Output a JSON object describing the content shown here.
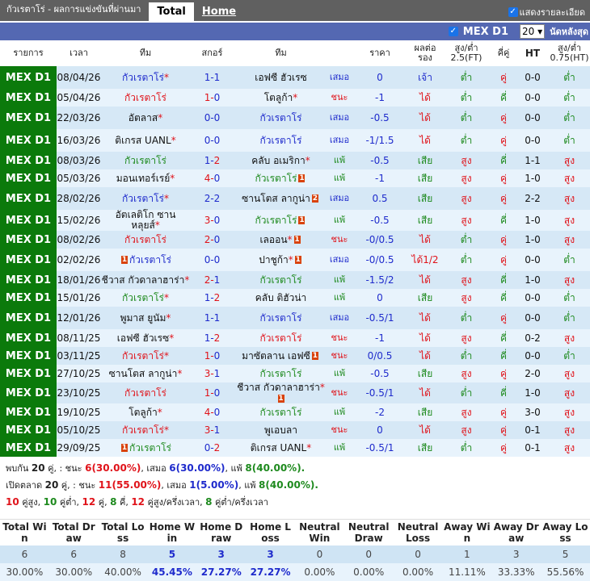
{
  "header": {
    "title": "กัวเรตาโร่ - ผลการแข่งขันที่ผ่านมา",
    "tabs": [
      "Total",
      "Home"
    ],
    "show_details": "แสดงรายละเอียด"
  },
  "filter": {
    "league": "MEX D1",
    "count": "20",
    "last_label": "นัดหลังสุด"
  },
  "columns": [
    "รายการ",
    "เวลา",
    "ทีม",
    "สกอร์",
    "ทีม",
    "",
    "ราคา",
    "ผลต่อรอง",
    "สูง/ต่ำ 2.5(FT)",
    "คี่คู่",
    "HT",
    "สูง/ต่ำ 0.75(HT)"
  ],
  "rows": [
    {
      "league": "MEX D1",
      "date": "08/04/26",
      "home": "กัวเรตาโร่",
      "home_star": true,
      "home_card": "",
      "away": "เอฟซี ฮัวเรซ",
      "away_star": false,
      "away_card": "",
      "score": "1-1",
      "focus": "home",
      "result": "เสมอ",
      "handicap": "0",
      "hres": "เจ้า",
      "ou": "ต่ำ",
      "oe": "คู่",
      "ht": "0-0",
      "htou": "ต่ำ"
    },
    {
      "league": "MEX D1",
      "date": "05/04/26",
      "home": "กัวเรตาโร่",
      "home_star": false,
      "home_card": "",
      "away": "โตลูก้า",
      "away_star": true,
      "away_card": "",
      "score": "1-0",
      "focus": "home",
      "result": "ชนะ",
      "handicap": "-1",
      "hres": "ได้",
      "ou": "ต่ำ",
      "oe": "คี่",
      "ht": "0-0",
      "htou": "ต่ำ"
    },
    {
      "league": "MEX D1",
      "date": "22/03/26",
      "home": "อัตลาส",
      "home_star": true,
      "home_card": "",
      "away": "กัวเรตาโร่",
      "away_star": false,
      "away_card": "",
      "score": "0-0",
      "focus": "away",
      "result": "เสมอ",
      "handicap": "-0.5",
      "hres": "ได้",
      "ou": "ต่ำ",
      "oe": "คู่",
      "ht": "0-0",
      "htou": "ต่ำ"
    },
    {
      "league": "MEX D1",
      "date": "16/03/26",
      "home": "ติเกรส UANL",
      "home_star": true,
      "home_card": "",
      "away": "กัวเรตาโร่",
      "away_star": false,
      "away_card": "",
      "score": "0-0",
      "focus": "away",
      "result": "เสมอ",
      "handicap": "-1/1.5",
      "hres": "ได้",
      "ou": "ต่ำ",
      "oe": "คู่",
      "ht": "0-0",
      "htou": "ต่ำ"
    },
    {
      "league": "MEX D1",
      "date": "08/03/26",
      "home": "กัวเรตาโร่",
      "home_star": false,
      "home_card": "",
      "away": "คลับ อเมริกา",
      "away_star": true,
      "away_card": "",
      "score": "1-2",
      "focus": "home",
      "result": "แพ้",
      "handicap": "-0.5",
      "hres": "เสีย",
      "ou": "สูง",
      "oe": "คี่",
      "ht": "1-1",
      "htou": "สูง"
    },
    {
      "league": "MEX D1",
      "date": "05/03/26",
      "home": "มอนเทอร์เรย์",
      "home_star": true,
      "home_card": "",
      "away": "กัวเรตาโร่",
      "away_star": false,
      "away_card": "1",
      "score": "4-0",
      "focus": "away",
      "result": "แพ้",
      "handicap": "-1",
      "hres": "เสีย",
      "ou": "สูง",
      "oe": "คู่",
      "ht": "1-0",
      "htou": "สูง"
    },
    {
      "league": "MEX D1",
      "date": "28/02/26",
      "home": "กัวเรตาโร่",
      "home_star": true,
      "home_card": "",
      "away": "ซานโตส ลากูน่า",
      "away_star": false,
      "away_card": "2",
      "score": "2-2",
      "focus": "home",
      "result": "เสมอ",
      "handicap": "0.5",
      "hres": "เสีย",
      "ou": "สูง",
      "oe": "คู่",
      "ht": "2-2",
      "htou": "สูง"
    },
    {
      "league": "MEX D1",
      "date": "15/02/26",
      "home": "อัตเลติโก ซาน หลุยส์",
      "home_star": true,
      "home_card": "",
      "away": "กัวเรตาโร่",
      "away_star": false,
      "away_card": "1",
      "score": "3-0",
      "focus": "away",
      "result": "แพ้",
      "handicap": "-0.5",
      "hres": "เสีย",
      "ou": "สูง",
      "oe": "คี่",
      "ht": "1-0",
      "htou": "สูง"
    },
    {
      "league": "MEX D1",
      "date": "08/02/26",
      "home": "กัวเรตาโร่",
      "home_star": false,
      "home_card": "",
      "away": "เลออน",
      "away_star": true,
      "away_card": "1",
      "score": "2-0",
      "focus": "home",
      "result": "ชนะ",
      "handicap": "-0/0.5",
      "hres": "ได้",
      "ou": "ต่ำ",
      "oe": "คู่",
      "ht": "1-0",
      "htou": "สูง"
    },
    {
      "league": "MEX D1",
      "date": "02/02/26",
      "home": "กัวเรตาโร่",
      "home_star": false,
      "home_card": "1",
      "away": "ปาชูก้า",
      "away_star": true,
      "away_card": "1",
      "score": "0-0",
      "focus": "home",
      "result": "เสมอ",
      "handicap": "-0/0.5",
      "hres": "ได้1/2",
      "ou": "ต่ำ",
      "oe": "คู่",
      "ht": "0-0",
      "htou": "ต่ำ"
    },
    {
      "league": "MEX D1",
      "date": "18/01/26",
      "home": "ชีวาส กัวดาลาฮาร่า",
      "home_star": true,
      "home_card": "",
      "away": "กัวเรตาโร่",
      "away_star": false,
      "away_card": "",
      "score": "2-1",
      "focus": "away",
      "result": "แพ้",
      "handicap": "-1.5/2",
      "hres": "ได้",
      "ou": "สูง",
      "oe": "คี่",
      "ht": "1-0",
      "htou": "สูง"
    },
    {
      "league": "MEX D1",
      "date": "15/01/26",
      "home": "กัวเรตาโร่",
      "home_star": true,
      "home_card": "",
      "away": "คลับ ติฮัวน่า",
      "away_star": false,
      "away_card": "",
      "score": "1-2",
      "focus": "home",
      "result": "แพ้",
      "handicap": "0",
      "hres": "เสีย",
      "ou": "สูง",
      "oe": "คี่",
      "ht": "0-0",
      "htou": "ต่ำ"
    },
    {
      "league": "MEX D1",
      "date": "12/01/26",
      "home": "พูมาส ยูนัม",
      "home_star": true,
      "home_card": "",
      "away": "กัวเรตาโร่",
      "away_star": false,
      "away_card": "",
      "score": "1-1",
      "focus": "away",
      "result": "เสมอ",
      "handicap": "-0.5/1",
      "hres": "ได้",
      "ou": "ต่ำ",
      "oe": "คู่",
      "ht": "0-0",
      "htou": "ต่ำ"
    },
    {
      "league": "MEX D1",
      "date": "08/11/25",
      "home": "เอฟซี ฮัวเรซ",
      "home_star": true,
      "home_card": "",
      "away": "กัวเรตาโร่",
      "away_star": false,
      "away_card": "",
      "score": "1-2",
      "focus": "away",
      "result": "ชนะ",
      "handicap": "-1",
      "hres": "ได้",
      "ou": "สูง",
      "oe": "คี่",
      "ht": "0-2",
      "htou": "สูง"
    },
    {
      "league": "MEX D1",
      "date": "03/11/25",
      "home": "กัวเรตาโร่",
      "home_star": true,
      "home_card": "",
      "away": "มาซัตลาน เอฟซี",
      "away_star": false,
      "away_card": "1",
      "score": "1-0",
      "focus": "home",
      "result": "ชนะ",
      "handicap": "0/0.5",
      "hres": "ได้",
      "ou": "ต่ำ",
      "oe": "คี่",
      "ht": "0-0",
      "htou": "ต่ำ"
    },
    {
      "league": "MEX D1",
      "date": "27/10/25",
      "home": "ซานโตส ลากูน่า",
      "home_star": true,
      "home_card": "",
      "away": "กัวเรตาโร่",
      "away_star": false,
      "away_card": "",
      "score": "3-1",
      "focus": "away",
      "result": "แพ้",
      "handicap": "-0.5",
      "hres": "เสีย",
      "ou": "สูง",
      "oe": "คู่",
      "ht": "2-0",
      "htou": "สูง"
    },
    {
      "league": "MEX D1",
      "date": "23/10/25",
      "home": "กัวเรตาโร่",
      "home_star": false,
      "home_card": "",
      "away": "ชีวาส กัวดาลาฮาร่า",
      "away_star": true,
      "away_card": "1",
      "score": "1-0",
      "focus": "home",
      "result": "ชนะ",
      "handicap": "-0.5/1",
      "hres": "ได้",
      "ou": "ต่ำ",
      "oe": "คี่",
      "ht": "1-0",
      "htou": "สูง"
    },
    {
      "league": "MEX D1",
      "date": "19/10/25",
      "home": "โตลูก้า",
      "home_star": true,
      "home_card": "",
      "away": "กัวเรตาโร่",
      "away_star": false,
      "away_card": "",
      "score": "4-0",
      "focus": "away",
      "result": "แพ้",
      "handicap": "-2",
      "hres": "เสีย",
      "ou": "สูง",
      "oe": "คู่",
      "ht": "3-0",
      "htou": "สูง"
    },
    {
      "league": "MEX D1",
      "date": "05/10/25",
      "home": "กัวเรตาโร่",
      "home_star": true,
      "home_card": "",
      "away": "พูเอบลา",
      "away_star": false,
      "away_card": "",
      "score": "3-1",
      "focus": "home",
      "result": "ชนะ",
      "handicap": "0",
      "hres": "ได้",
      "ou": "สูง",
      "oe": "คู่",
      "ht": "0-1",
      "htou": "สูง"
    },
    {
      "league": "MEX D1",
      "date": "29/09/25",
      "home": "กัวเรตาโร่",
      "home_star": false,
      "home_card": "1",
      "away": "ติเกรส UANL",
      "away_star": true,
      "away_card": "",
      "score": "0-2",
      "focus": "home",
      "result": "แพ้",
      "handicap": "-0.5/1",
      "hres": "เสีย",
      "ou": "ต่ำ",
      "oe": "คู่",
      "ht": "0-1",
      "htou": "สูง"
    }
  ],
  "summary": {
    "line1": {
      "pre": "พบกัน",
      "n": "20",
      "unit": "คู่, : ชนะ",
      "w": "6",
      "wp": "(30.00%)",
      "dl": ", เสมอ",
      "d": "6",
      "dp": "(30.00%)",
      "ll": ", แพ้",
      "l": "8",
      "lp": "(40.00%)."
    },
    "line2": {
      "pre": "เปิดตลาด",
      "n": "20",
      "unit": "คู่, : ชนะ",
      "w": "11",
      "wp": "(55.00%)",
      "dl": ", เสมอ",
      "d": "1",
      "dp": "(5.00%)",
      "ll": ", แพ้",
      "l": "8",
      "lp": "(40.00%)."
    },
    "line3": [
      {
        "n": "10",
        "t": "คู่สูง,",
        "c": "win"
      },
      {
        "n": "10",
        "t": "คู่ต่ำ,",
        "c": "loss"
      },
      {
        "n": "12",
        "t": "คู่,",
        "c": "win"
      },
      {
        "n": "8",
        "t": "คี่,",
        "c": "loss"
      },
      {
        "n": "12",
        "t": "คู่สูง/ครึ่งเวลา,",
        "c": "win"
      },
      {
        "n": "8",
        "t": "คู่ต่ำ/ครึ่งเวลา",
        "c": "loss"
      }
    ]
  },
  "stats": {
    "headers": [
      "Total Win",
      "Total Draw",
      "Total Loss",
      "Home Win",
      "Home Draw",
      "Home Loss",
      "Neutral Win",
      "Neutral Draw",
      "Neutral Loss",
      "Away Win",
      "Away Draw",
      "Away Loss"
    ],
    "counts": [
      "6",
      "6",
      "8",
      "5",
      "3",
      "3",
      "0",
      "0",
      "0",
      "1",
      "3",
      "5"
    ],
    "percents": [
      "30.00%",
      "30.00%",
      "40.00%",
      "45.45%",
      "27.27%",
      "27.27%",
      "0.00%",
      "0.00%",
      "0.00%",
      "11.11%",
      "33.33%",
      "55.56%"
    ],
    "highlight": [
      3,
      4,
      5
    ]
  }
}
